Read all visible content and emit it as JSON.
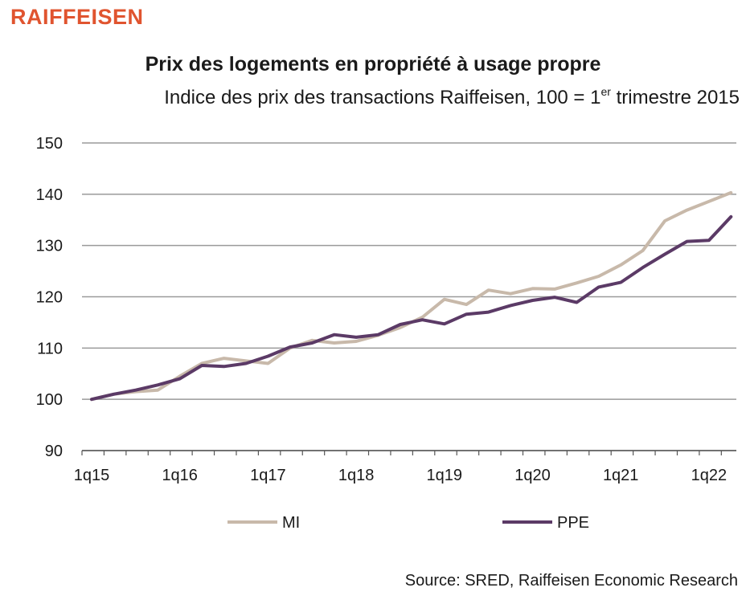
{
  "logo_text": "RAIFFEISEN",
  "source": "Source: SRED, Raiffeisen Economic Research",
  "colors": {
    "logo": "#e0542f",
    "MI": "#c8b9aa",
    "PPE": "#5b3a66",
    "grid": "#9a9a9a"
  },
  "chart_data": {
    "type": "line",
    "title": "Prix des logements en propriété à usage propre",
    "subtitle_main": "Indice des prix des transactions Raiffeisen, 100 = 1",
    "subtitle_sup": "er",
    "subtitle_end": " trimestre 2015",
    "xlabel": "",
    "ylabel": "",
    "ylim": [
      90,
      150
    ],
    "yticks": [
      90,
      100,
      110,
      120,
      130,
      140,
      150
    ],
    "x_tick_labels": [
      "1q15",
      "1q16",
      "1q17",
      "1q18",
      "1q19",
      "1q20",
      "1q21",
      "1q22"
    ],
    "grid": true,
    "legend_position": "bottom",
    "series": [
      {
        "name": "MI",
        "values": [
          100.0,
          101.0,
          101.5,
          101.8,
          104.5,
          107.0,
          108.0,
          107.5,
          107.0,
          110.0,
          111.5,
          111.0,
          111.3,
          112.5,
          114.0,
          116.0,
          119.5,
          118.5,
          121.3,
          120.6,
          121.6,
          121.5,
          122.7,
          124.0,
          126.2,
          129.0,
          134.8,
          136.9,
          138.6,
          140.3
        ]
      },
      {
        "name": "PPE",
        "values": [
          100.0,
          101.0,
          101.8,
          102.8,
          104.0,
          106.6,
          106.4,
          107.0,
          108.4,
          110.2,
          111.0,
          112.6,
          112.1,
          112.6,
          114.6,
          115.5,
          114.7,
          116.6,
          117.0,
          118.3,
          119.3,
          119.9,
          118.9,
          121.9,
          122.8,
          125.7,
          128.3,
          130.8,
          131.0,
          135.6
        ]
      }
    ]
  }
}
